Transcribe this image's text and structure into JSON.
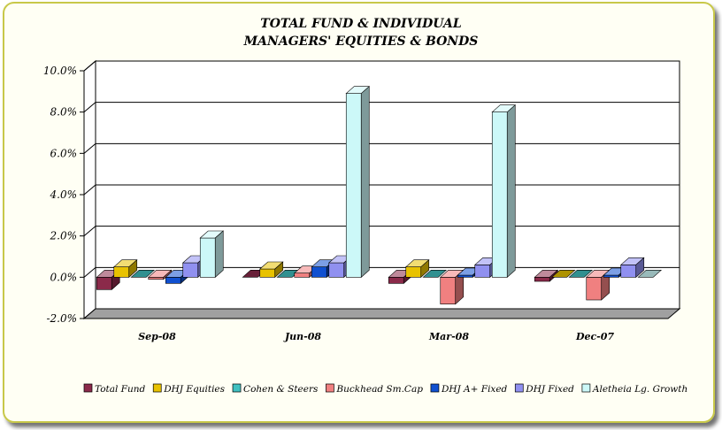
{
  "chart_data": {
    "type": "bar",
    "title": [
      "TOTAL FUND  & INDIVIDUAL",
      "MANAGERS' EQUITIES & BONDS"
    ],
    "categories": [
      "Sep-08",
      "Jun-08",
      "Mar-08",
      "Dec-07"
    ],
    "ylim": [
      -2.0,
      10.0
    ],
    "yticks": [
      "10.0%",
      "8.0%",
      "6.0%",
      "4.0%",
      "2.0%",
      "0.0%",
      "-2.0%"
    ],
    "ytick_values": [
      10,
      8,
      6,
      4,
      2,
      0,
      -2
    ],
    "grid": true,
    "legend_position": "bottom",
    "series": [
      {
        "name": "Total Fund",
        "color": "#8b2a4a",
        "values": [
          -0.6,
          0.0,
          -0.3,
          -0.2
        ]
      },
      {
        "name": "DHJ Equities",
        "color": "#e8c200",
        "values": [
          0.5,
          0.4,
          0.5,
          0.0
        ]
      },
      {
        "name": "Cohen & Steers",
        "color": "#40c0c0",
        "values": [
          0.0,
          0.0,
          0.0,
          0.0
        ]
      },
      {
        "name": "Buckhead Sm.Cap",
        "color": "#f08080",
        "values": [
          -0.1,
          0.2,
          -1.3,
          -1.1
        ]
      },
      {
        "name": "DHJ A+ Fixed",
        "color": "#1050d0",
        "values": [
          -0.3,
          0.5,
          0.1,
          0.1
        ]
      },
      {
        "name": "DHJ Fixed",
        "color": "#9090f0",
        "values": [
          0.7,
          0.7,
          0.6,
          0.6
        ]
      },
      {
        "name": "Aletheia Lg. Growth",
        "color": "#ccf8f8",
        "values": [
          1.9,
          8.9,
          8.0,
          0.0
        ]
      }
    ]
  }
}
